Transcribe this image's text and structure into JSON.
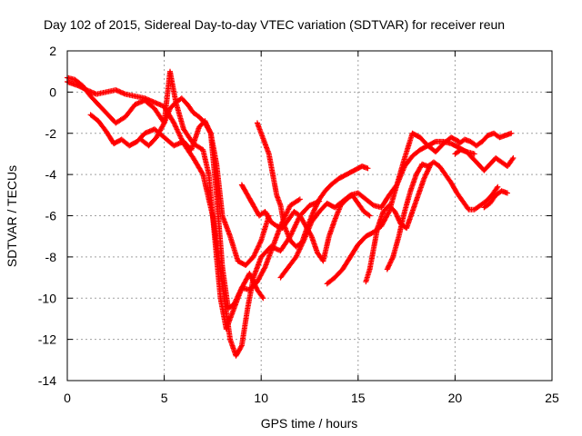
{
  "chart_data": {
    "type": "scatter",
    "title": "Day 102 of 2015, Sidereal Day-to-day VTEC variation (SDTVAR) for receiver reun",
    "xlabel": "GPS time / hours",
    "ylabel": "SDTVAR / TECUs",
    "xlim": [
      0,
      25
    ],
    "ylim": [
      -14,
      2
    ],
    "xticks": [
      0,
      5,
      10,
      15,
      20,
      25
    ],
    "yticks": [
      -14,
      -12,
      -10,
      -8,
      -6,
      -4,
      -2,
      0,
      2
    ],
    "grid": true,
    "marker": "plus",
    "color": "#ff0000",
    "series": [
      {
        "x": [
          0.0,
          0.3,
          0.6,
          1.0,
          1.5,
          2.0,
          2.5,
          3.0,
          3.5,
          4.0,
          4.5,
          5.0,
          5.5,
          6.0,
          6.5,
          7.0,
          7.5,
          7.8,
          8.1,
          8.4,
          8.7,
          9.0,
          9.3,
          9.6,
          10.0,
          10.5,
          11.0,
          11.5,
          12.0,
          12.5,
          13.0
        ],
        "y": [
          0.5,
          0.4,
          0.3,
          0.1,
          -0.1,
          0.0,
          0.1,
          -0.1,
          -0.2,
          -0.3,
          -0.5,
          -0.7,
          -1.5,
          -2.5,
          -3.2,
          -4.0,
          -6.0,
          -8.0,
          -10.0,
          -12.0,
          -12.8,
          -12.3,
          -10.5,
          -9.0,
          -8.0,
          -7.5,
          -7.7,
          -7.0,
          -6.0,
          -5.5,
          -5.3
        ]
      },
      {
        "x": [
          0.0,
          0.4,
          0.8,
          1.2,
          1.8,
          2.5,
          3.0,
          3.5,
          4.0,
          4.5,
          5.0,
          5.3,
          5.6,
          6.0,
          6.5,
          7.0,
          7.3,
          7.6,
          7.9,
          8.2,
          8.6,
          9.0,
          9.4,
          9.8,
          10.2,
          10.6,
          11.0,
          11.5,
          12.0
        ],
        "y": [
          0.7,
          0.6,
          0.3,
          -0.2,
          -0.8,
          -1.5,
          -1.2,
          -0.6,
          -0.4,
          -0.8,
          -1.5,
          1.0,
          -0.5,
          -1.8,
          -2.5,
          -2.8,
          -4.0,
          -7.0,
          -10.0,
          -11.5,
          -10.5,
          -9.5,
          -9.6,
          -9.2,
          -8.5,
          -7.5,
          -6.5,
          -5.5,
          -5.2
        ]
      },
      {
        "x": [
          1.2,
          1.6,
          2.0,
          2.4,
          2.8,
          3.2,
          3.6,
          4.0,
          4.5,
          5.0,
          5.5,
          6.0,
          6.4,
          6.8,
          7.1,
          7.4,
          7.7,
          8.0,
          8.3,
          8.6,
          9.0,
          9.4,
          9.8,
          10.1
        ],
        "y": [
          -1.1,
          -1.4,
          -1.9,
          -2.5,
          -2.3,
          -2.6,
          -2.4,
          -2.0,
          -1.8,
          -2.2,
          -2.6,
          -2.4,
          -2.8,
          -1.7,
          -1.4,
          -2.0,
          -5.0,
          -8.5,
          -10.5,
          -10.3,
          -9.5,
          -8.8,
          -9.6,
          -10.0
        ]
      },
      {
        "x": [
          3.8,
          4.2,
          4.6,
          5.0,
          5.3,
          5.6,
          5.9,
          6.2,
          6.5,
          6.8,
          7.1,
          7.4,
          7.7,
          8.0,
          8.4,
          8.8,
          9.2,
          9.6,
          10.0,
          10.4
        ],
        "y": [
          -2.3,
          -2.6,
          -2.2,
          -1.5,
          -0.8,
          -0.5,
          -0.3,
          -0.6,
          -1.0,
          -1.2,
          -1.5,
          -2.0,
          -3.5,
          -6.0,
          -7.0,
          -8.2,
          -8.4,
          -8.0,
          -7.2,
          -6.0
        ]
      },
      {
        "x": [
          9.8,
          10.0,
          10.2,
          10.4,
          10.6,
          10.8,
          11.0,
          11.2,
          11.5,
          11.8,
          12.1,
          12.4,
          12.7,
          13.0,
          13.3,
          13.6,
          14.0,
          14.4,
          14.8,
          15.2,
          15.5
        ],
        "y": [
          -1.5,
          -2.0,
          -2.5,
          -3.0,
          -4.0,
          -5.0,
          -5.5,
          -6.5,
          -7.2,
          -7.5,
          -7.3,
          -6.5,
          -5.8,
          -5.2,
          -4.8,
          -4.5,
          -4.2,
          -4.0,
          -3.8,
          -3.6,
          -3.7
        ]
      },
      {
        "x": [
          9.0,
          9.3,
          9.6,
          9.9,
          10.2,
          10.5,
          10.8,
          11.1,
          11.4,
          11.7,
          12.0,
          12.3,
          12.6,
          12.9,
          13.2,
          13.5,
          13.8,
          14.1,
          14.4,
          14.7,
          15.0,
          15.3,
          15.6
        ],
        "y": [
          -4.5,
          -5.0,
          -5.5,
          -6.0,
          -5.8,
          -6.3,
          -6.5,
          -6.6,
          -6.2,
          -5.8,
          -6.0,
          -6.5,
          -7.0,
          -7.8,
          -8.2,
          -7.0,
          -6.2,
          -5.5,
          -5.2,
          -5.0,
          -5.4,
          -5.8,
          -6.0
        ]
      },
      {
        "x": [
          11.0,
          11.4,
          11.8,
          12.2,
          12.6,
          13.0,
          13.4,
          13.8,
          14.2,
          14.6,
          15.0,
          15.4,
          15.8,
          16.2,
          16.6,
          17.0,
          17.4,
          17.8,
          18.2,
          18.6,
          19.0,
          19.4,
          19.8,
          20.2,
          20.6,
          21.0
        ],
        "y": [
          -9.0,
          -8.5,
          -8.0,
          -7.2,
          -6.3,
          -5.8,
          -5.4,
          -5.6,
          -5.3,
          -5.0,
          -4.9,
          -5.2,
          -5.5,
          -5.6,
          -5.0,
          -4.5,
          -3.6,
          -3.1,
          -2.8,
          -2.6,
          -2.4,
          -2.4,
          -2.5,
          -2.7,
          -2.9,
          -3.0
        ]
      },
      {
        "x": [
          13.4,
          13.8,
          14.2,
          14.6,
          15.0,
          15.4,
          15.8,
          16.2,
          16.6,
          17.0,
          17.4,
          17.8,
          18.2,
          18.6,
          19.0,
          19.4,
          19.8,
          20.2
        ],
        "y": [
          -9.3,
          -9.0,
          -8.6,
          -8.0,
          -7.4,
          -7.0,
          -6.8,
          -6.5,
          -5.8,
          -4.5,
          -3.2,
          -2.0,
          -2.2,
          -2.6,
          -2.9,
          -2.5,
          -2.2,
          -2.4
        ]
      },
      {
        "x": [
          15.4,
          15.6,
          15.8,
          16.0,
          16.3,
          16.6,
          16.9,
          17.2,
          17.5,
          17.8,
          18.1,
          18.4,
          18.7
        ],
        "y": [
          -9.2,
          -8.6,
          -7.6,
          -6.6,
          -5.8,
          -5.5,
          -5.8,
          -6.4,
          -6.6,
          -5.8,
          -5.0,
          -4.2,
          -3.6
        ]
      },
      {
        "x": [
          16.5,
          16.8,
          17.1,
          17.4,
          17.7,
          18.0,
          18.3,
          18.6,
          18.9,
          19.2,
          19.5,
          19.8,
          20.1,
          20.4,
          20.7,
          21.0,
          21.3,
          21.6,
          21.9,
          22.2
        ],
        "y": [
          -8.6,
          -8.0,
          -7.0,
          -5.8,
          -4.8,
          -4.0,
          -3.5,
          -3.6,
          -3.4,
          -3.6,
          -4.0,
          -4.4,
          -4.9,
          -5.3,
          -5.7,
          -5.7,
          -5.5,
          -5.3,
          -5.0,
          -4.6
        ]
      },
      {
        "x": [
          20.0,
          20.3,
          20.6,
          20.9,
          21.2,
          21.5,
          21.8,
          22.1,
          22.4,
          22.7,
          23.0
        ],
        "y": [
          -3.0,
          -2.8,
          -2.9,
          -3.2,
          -3.5,
          -3.8,
          -3.5,
          -3.2,
          -3.4,
          -3.6,
          -3.2
        ]
      },
      {
        "x": [
          20.2,
          20.5,
          20.8,
          21.1,
          21.4,
          21.7,
          22.0,
          22.3,
          22.6,
          22.9
        ],
        "y": [
          -2.5,
          -2.3,
          -2.4,
          -2.6,
          -2.4,
          -2.1,
          -2.0,
          -2.2,
          -2.1,
          -2.0
        ]
      },
      {
        "x": [
          21.5,
          21.8,
          22.1,
          22.4,
          22.7
        ],
        "y": [
          -5.6,
          -5.4,
          -5.0,
          -4.8,
          -4.9
        ]
      }
    ]
  }
}
